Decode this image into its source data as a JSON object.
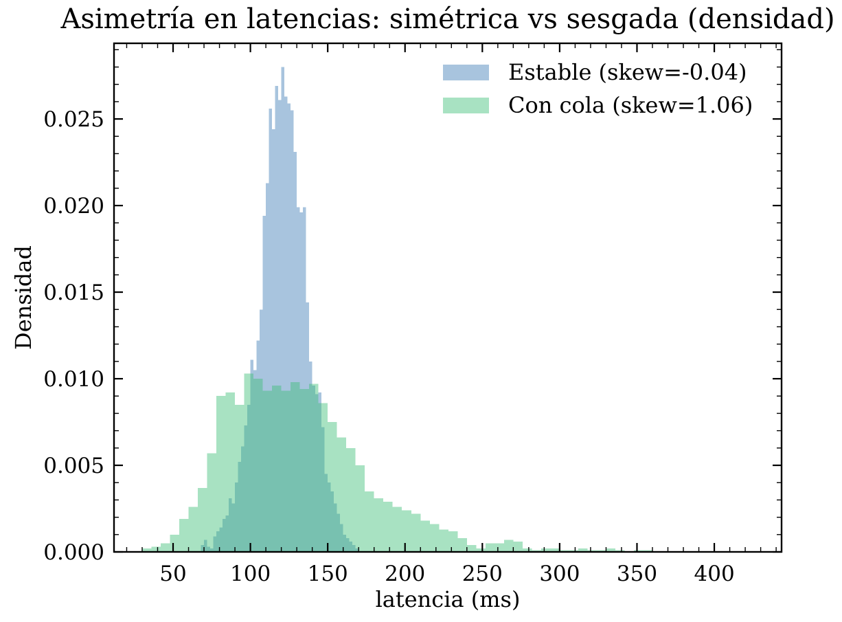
{
  "chart_data": {
    "type": "bar",
    "subtype": "overlapping-density-histograms",
    "title": "Asimetría en latencias: simétrica vs sesgada (densidad)",
    "xlabel": "latencia (ms)",
    "ylabel": "Densidad",
    "xlim": [
      11.8,
      443.5
    ],
    "ylim": [
      0,
      0.02937
    ],
    "grid": false,
    "legend": {
      "location": "upper right",
      "frame": false
    },
    "x_ticks": {
      "major": [
        50,
        100,
        150,
        200,
        250,
        300,
        350,
        400
      ],
      "labels": [
        "50",
        "100",
        "150",
        "200",
        "250",
        "300",
        "350",
        "400"
      ],
      "minor_step": 10
    },
    "y_ticks": {
      "major": [
        0,
        0.005,
        0.01,
        0.015,
        0.02,
        0.025
      ],
      "labels": [
        "0.000",
        "0.005",
        "0.010",
        "0.015",
        "0.020",
        "0.025"
      ],
      "minor_step": 0.001
    },
    "series": [
      {
        "name": "estable",
        "label": "Estable (skew=-0.04)",
        "skew": -0.04,
        "base_color": "#3e7cb6",
        "fill_css": "rgba(62,124,182,0.45)",
        "swatch_on_white": "#a8c4de",
        "bin_start": 68,
        "bin_width": 2,
        "densities": [
          0.0004,
          0.0007,
          0.0003,
          0.0002,
          0.0009,
          0.0012,
          0.0014,
          0.0019,
          0.0021,
          0.0031,
          0.0028,
          0.004,
          0.0052,
          0.0061,
          0.0073,
          0.0085,
          0.0111,
          0.0105,
          0.0122,
          0.014,
          0.0194,
          0.0213,
          0.0256,
          0.0244,
          0.0269,
          0.0261,
          0.028,
          0.0263,
          0.0259,
          0.0255,
          0.0231,
          0.0199,
          0.0196,
          0.0199,
          0.0144,
          0.011,
          0.0096,
          0.0091,
          0.0092,
          0.0072,
          0.0045,
          0.004,
          0.0035,
          0.0028,
          0.0022,
          0.0016,
          0.001,
          0.0008,
          0.0006,
          0.0004,
          0.0002
        ]
      },
      {
        "name": "con-cola",
        "label": "Con cola (skew=1.06)",
        "skew": 1.06,
        "base_color": "#3ebf77",
        "fill_css": "rgba(62,191,119,0.45)",
        "swatch_on_white": "#a8e2c2",
        "bin_start": 30,
        "bin_width": 6,
        "densities": [
          0.0002,
          0.0003,
          0.0005,
          0.001,
          0.0019,
          0.0026,
          0.0037,
          0.0057,
          0.009,
          0.0092,
          0.0085,
          0.0103,
          0.01,
          0.0093,
          0.0096,
          0.0093,
          0.0098,
          0.0094,
          0.0097,
          0.0086,
          0.0075,
          0.0066,
          0.006,
          0.005,
          0.0035,
          0.0031,
          0.0029,
          0.0026,
          0.0024,
          0.0022,
          0.0018,
          0.0016,
          0.0013,
          0.0012,
          0.0008,
          0.0004,
          0.0002,
          0.0005,
          0.0005,
          0.0007,
          0.0006,
          0.0002,
          0.0001,
          0.0002,
          0.0002,
          0.0001,
          0.0001,
          0.0002,
          0.0001,
          0.0001,
          0.0002,
          0.0001,
          0.0,
          0.0001,
          0.0001
        ]
      }
    ]
  }
}
